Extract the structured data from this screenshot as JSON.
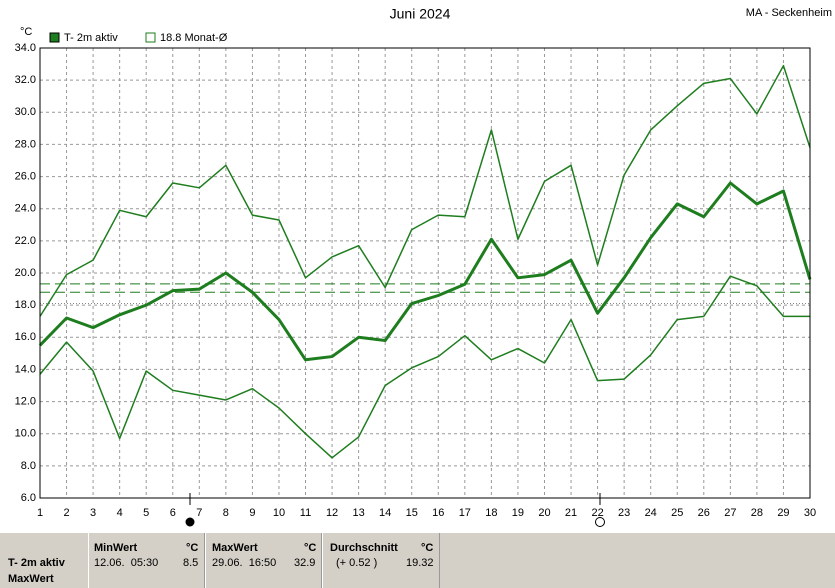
{
  "chart_data": {
    "type": "line",
    "title": "Juni 2024",
    "subtitle": "MA - Seckenheim",
    "y_unit": "°C",
    "x": [
      1,
      2,
      3,
      4,
      5,
      6,
      7,
      8,
      9,
      10,
      11,
      12,
      13,
      14,
      15,
      16,
      17,
      18,
      19,
      20,
      21,
      22,
      23,
      24,
      25,
      26,
      27,
      28,
      29,
      30
    ],
    "xlim": [
      1,
      30
    ],
    "xticks": [
      1,
      2,
      3,
      4,
      5,
      6,
      7,
      8,
      9,
      10,
      11,
      12,
      13,
      14,
      15,
      16,
      17,
      18,
      19,
      20,
      21,
      22,
      23,
      24,
      25,
      26,
      27,
      28,
      29,
      30
    ],
    "ylim": [
      6,
      34
    ],
    "yticks": [
      {
        "value": 6,
        "label": "6.0"
      },
      {
        "value": 8,
        "label": "8.0"
      },
      {
        "value": 10,
        "label": "10.0"
      },
      {
        "value": 12,
        "label": "12.0"
      },
      {
        "value": 14,
        "label": "14.0"
      },
      {
        "value": 16,
        "label": "16.0"
      },
      {
        "value": 18,
        "label": "18.0"
      },
      {
        "value": 20,
        "label": "20.0"
      },
      {
        "value": 22,
        "label": "22.0"
      },
      {
        "value": 24,
        "label": "24.0"
      },
      {
        "value": 26,
        "label": "26.0"
      },
      {
        "value": 28,
        "label": "28.0"
      },
      {
        "value": 30,
        "label": "30.0"
      },
      {
        "value": 32,
        "label": "32.0"
      },
      {
        "value": 34,
        "label": "34.0"
      }
    ],
    "grid": true,
    "series": [
      {
        "name": "T- 2m aktiv",
        "color": "#1e7d1e",
        "width": 3,
        "values": [
          15.5,
          17.2,
          16.6,
          17.4,
          18.0,
          18.9,
          19.0,
          20.0,
          18.8,
          17.1,
          14.6,
          14.8,
          16.0,
          15.8,
          18.1,
          18.6,
          19.3,
          22.1,
          19.7,
          19.9,
          20.8,
          17.5,
          19.7,
          22.2,
          24.3,
          23.5,
          25.6,
          24.3,
          25.1,
          19.6
        ]
      },
      {
        "color": "#1e7d1e",
        "width": 1.5,
        "values": [
          17.3,
          19.9,
          20.8,
          23.9,
          23.5,
          25.6,
          25.3,
          26.7,
          23.6,
          23.3,
          19.7,
          21.0,
          21.7,
          19.1,
          22.7,
          23.6,
          23.5,
          28.9,
          22.1,
          25.7,
          26.7,
          20.5,
          26.1,
          28.9,
          30.4,
          31.8,
          32.1,
          29.9,
          32.9,
          27.8
        ]
      },
      {
        "color": "#1e7d1e",
        "width": 1.5,
        "values": [
          13.7,
          15.7,
          13.9,
          9.7,
          13.9,
          12.7,
          12.4,
          12.1,
          12.8,
          11.6,
          10.0,
          8.5,
          9.8,
          13.0,
          14.1,
          14.8,
          16.1,
          14.6,
          15.3,
          14.4,
          17.1,
          13.3,
          13.4,
          14.9,
          17.1,
          17.3,
          19.8,
          19.2,
          17.3,
          17.3
        ]
      }
    ],
    "hlines": [
      {
        "label": "18.8 Monat-Ø",
        "value": 18.8,
        "color": "#1e7d1e",
        "style": "dashed"
      },
      {
        "value": 19.32,
        "color": "#1e7d1e",
        "style": "dashed"
      },
      {
        "value": 18.1,
        "color": "#888888",
        "style": "dotted"
      }
    ]
  },
  "stats": {
    "row_labels": [
      "T- 2m aktiv",
      "MaxWert"
    ],
    "min": {
      "title": "MinWert",
      "unit": "°C",
      "when": "12.06.  05:30",
      "value": "8.5"
    },
    "max": {
      "title": "MaxWert",
      "unit": "°C",
      "when": "29.06.  16:50",
      "value": "32.9"
    },
    "avg": {
      "title": "Durchschnitt",
      "unit": "°C",
      "when": "(+ 0.52 )",
      "value": "19.32"
    }
  }
}
